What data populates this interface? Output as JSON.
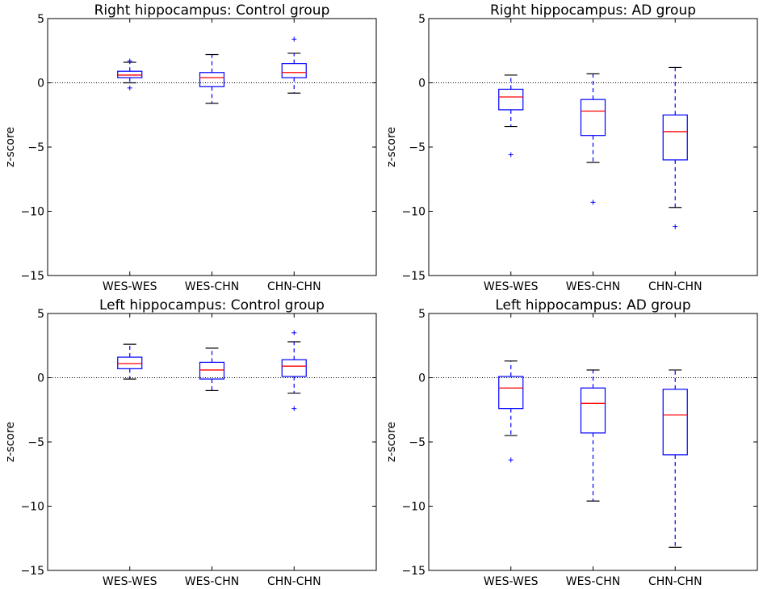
{
  "chart_data": [
    {
      "type": "box",
      "title": "Right hippocampus: Control group",
      "xlabel": "",
      "ylabel": "z-score",
      "ylim": [
        -15,
        5
      ],
      "yticks": [
        5,
        0,
        -5,
        -10,
        -15
      ],
      "ytick_labels": [
        "5",
        "0",
        "−5",
        "−10",
        "−15"
      ],
      "reference_line": 0,
      "categories": [
        "WES-WES",
        "WES-CHN",
        "CHN-CHN"
      ],
      "boxes": [
        {
          "whisker_low": 0.0,
          "q1": 0.4,
          "median": 0.6,
          "q3": 0.9,
          "whisker_high": 1.6,
          "outliers": [
            1.7,
            -0.4
          ]
        },
        {
          "whisker_low": -1.6,
          "q1": -0.3,
          "median": 0.4,
          "q3": 0.8,
          "whisker_high": 2.2,
          "outliers": []
        },
        {
          "whisker_low": -0.8,
          "q1": 0.4,
          "median": 0.8,
          "q3": 1.5,
          "whisker_high": 2.3,
          "outliers": [
            3.4
          ]
        }
      ]
    },
    {
      "type": "box",
      "title": "Right hippocampus: AD group",
      "xlabel": "",
      "ylabel": "z-score",
      "ylim": [
        -15,
        5
      ],
      "yticks": [
        5,
        0,
        -5,
        -10,
        -15
      ],
      "ytick_labels": [
        "5",
        "0",
        "−5",
        "−10",
        "−15"
      ],
      "reference_line": 0,
      "categories": [
        "WES-WES",
        "WES-CHN",
        "CHN-CHN"
      ],
      "boxes": [
        {
          "whisker_low": -3.4,
          "q1": -2.1,
          "median": -1.1,
          "q3": -0.5,
          "whisker_high": 0.6,
          "outliers": [
            -5.6
          ]
        },
        {
          "whisker_low": -6.2,
          "q1": -4.1,
          "median": -2.2,
          "q3": -1.3,
          "whisker_high": 0.7,
          "outliers": [
            -9.3
          ]
        },
        {
          "whisker_low": -9.7,
          "q1": -6.0,
          "median": -3.8,
          "q3": -2.5,
          "whisker_high": 1.2,
          "outliers": [
            -11.2
          ]
        }
      ]
    },
    {
      "type": "box",
      "title": "Left hippocampus: Control group",
      "xlabel": "",
      "ylabel": "z-score",
      "ylim": [
        -15,
        5
      ],
      "yticks": [
        5,
        0,
        -5,
        -10,
        -15
      ],
      "ytick_labels": [
        "5",
        "0",
        "−5",
        "−10",
        "−15"
      ],
      "reference_line": 0,
      "categories": [
        "WES-WES",
        "WES-CHN",
        "CHN-CHN"
      ],
      "boxes": [
        {
          "whisker_low": -0.1,
          "q1": 0.7,
          "median": 1.1,
          "q3": 1.6,
          "whisker_high": 2.6,
          "outliers": []
        },
        {
          "whisker_low": -1.0,
          "q1": -0.1,
          "median": 0.6,
          "q3": 1.2,
          "whisker_high": 2.3,
          "outliers": []
        },
        {
          "whisker_low": -1.2,
          "q1": 0.1,
          "median": 0.9,
          "q3": 1.4,
          "whisker_high": 2.8,
          "outliers": [
            3.5,
            -2.4
          ]
        }
      ]
    },
    {
      "type": "box",
      "title": "Left hippocampus: AD group",
      "xlabel": "",
      "ylabel": "z-score",
      "ylim": [
        -15,
        5
      ],
      "yticks": [
        5,
        0,
        -5,
        -10,
        -15
      ],
      "ytick_labels": [
        "5",
        "0",
        "−5",
        "−10",
        "−15"
      ],
      "reference_line": 0,
      "categories": [
        "WES-WES",
        "WES-CHN",
        "CHN-CHN"
      ],
      "boxes": [
        {
          "whisker_low": -4.5,
          "q1": -2.4,
          "median": -0.8,
          "q3": 0.1,
          "whisker_high": 1.3,
          "outliers": [
            -6.4
          ]
        },
        {
          "whisker_low": -9.6,
          "q1": -4.3,
          "median": -2.0,
          "q3": -0.8,
          "whisker_high": 0.6,
          "outliers": []
        },
        {
          "whisker_low": -13.2,
          "q1": -6.0,
          "median": -2.9,
          "q3": -0.9,
          "whisker_high": 0.6,
          "outliers": []
        }
      ]
    }
  ],
  "colors": {
    "box": "#0000ff",
    "median": "#ff0000",
    "whisker_cap": "#000000",
    "outlier": "#0000ff",
    "axes": "#000000",
    "reference_line": "#000000"
  }
}
